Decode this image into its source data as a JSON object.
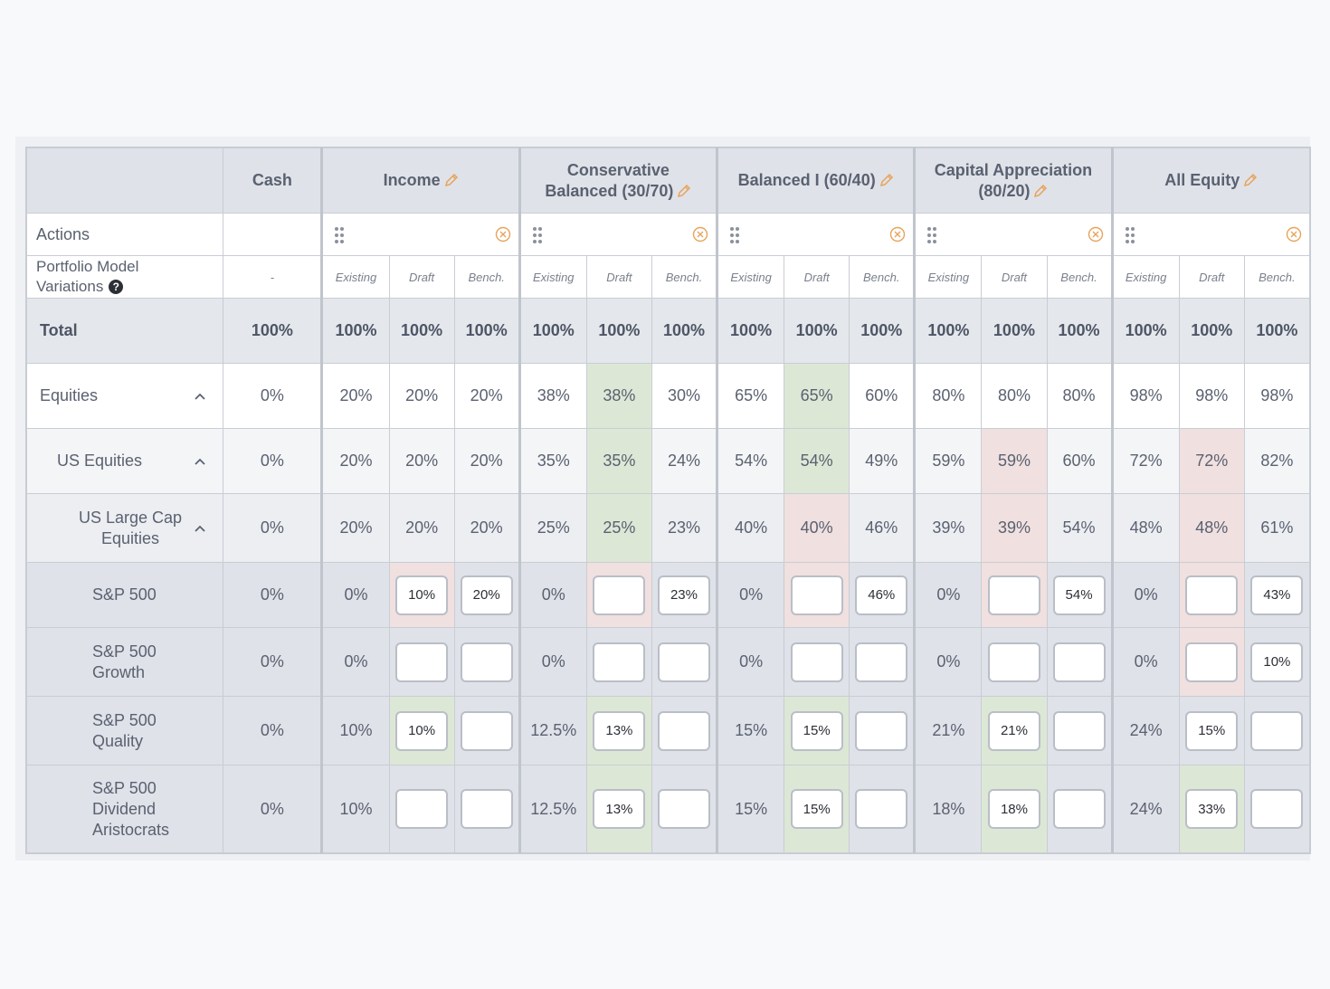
{
  "columns": {
    "row_header": "",
    "cash": "Cash",
    "models": [
      {
        "name": "Income",
        "editable": true
      },
      {
        "name": "Conservative Balanced (30/70)",
        "editable": true
      },
      {
        "name": "Balanced I (60/40)",
        "editable": true
      },
      {
        "name": "Capital Appreciation (80/20)",
        "editable": true
      },
      {
        "name": "All Equity",
        "editable": true
      }
    ],
    "variations": [
      "Existing",
      "Draft",
      "Bench."
    ]
  },
  "actions_label": "Actions",
  "variations_label": "Portfolio Model Variations",
  "cash_variation": "-",
  "rows": [
    {
      "label": "Total",
      "cash": "100%",
      "values": [
        "100%",
        "100%",
        "100%",
        "100%",
        "100%",
        "100%",
        "100%",
        "100%",
        "100%",
        "100%",
        "100%",
        "100%",
        "100%",
        "100%",
        "100%"
      ]
    },
    {
      "label": "Equities",
      "cash": "0%",
      "values": [
        "20%",
        "20%",
        "20%",
        "38%",
        "38%",
        "30%",
        "65%",
        "65%",
        "60%",
        "80%",
        "80%",
        "80%",
        "98%",
        "98%",
        "98%"
      ]
    },
    {
      "label": "US Equities",
      "cash": "0%",
      "values": [
        "20%",
        "20%",
        "20%",
        "35%",
        "35%",
        "24%",
        "54%",
        "54%",
        "49%",
        "59%",
        "59%",
        "60%",
        "72%",
        "72%",
        "82%"
      ]
    },
    {
      "label": "US Large Cap Equities",
      "cash": "0%",
      "values": [
        "20%",
        "20%",
        "20%",
        "25%",
        "25%",
        "23%",
        "40%",
        "40%",
        "46%",
        "39%",
        "39%",
        "54%",
        "48%",
        "48%",
        "61%"
      ]
    },
    {
      "label": "S&P 500",
      "cash": "0%",
      "existing": [
        "0%",
        "0%",
        "0%",
        "0%",
        "0%"
      ],
      "draft": [
        "10%",
        "",
        "",
        "",
        ""
      ],
      "bench": [
        "20%",
        "23%",
        "46%",
        "54%",
        "43%"
      ]
    },
    {
      "label": "S&P 500 Growth",
      "cash": "0%",
      "existing": [
        "0%",
        "0%",
        "0%",
        "0%",
        "0%"
      ],
      "draft": [
        "",
        "",
        "",
        "",
        ""
      ],
      "bench": [
        "",
        "",
        "",
        "",
        "10%"
      ]
    },
    {
      "label": "S&P 500 Quality",
      "cash": "0%",
      "existing": [
        "10%",
        "12.5%",
        "15%",
        "21%",
        "24%"
      ],
      "draft": [
        "10%",
        "13%",
        "15%",
        "21%",
        "15%"
      ],
      "bench": [
        "",
        "",
        "",
        "",
        ""
      ]
    },
    {
      "label": "S&P 500 Dividend Aristocrats",
      "cash": "0%",
      "existing": [
        "10%",
        "12.5%",
        "15%",
        "18%",
        "24%"
      ],
      "draft": [
        "",
        "13%",
        "15%",
        "18%",
        "33%"
      ],
      "bench": [
        "",
        "",
        "",
        "",
        ""
      ]
    }
  ],
  "highlight_colors": {
    "positive": "#dde7d6",
    "negative": "#f0e0e0"
  },
  "icons": {
    "edit": "pencil-icon",
    "drag": "drag-handle-icon",
    "remove": "remove-circle-icon",
    "collapse": "chevron-up-icon",
    "help": "help-icon"
  }
}
